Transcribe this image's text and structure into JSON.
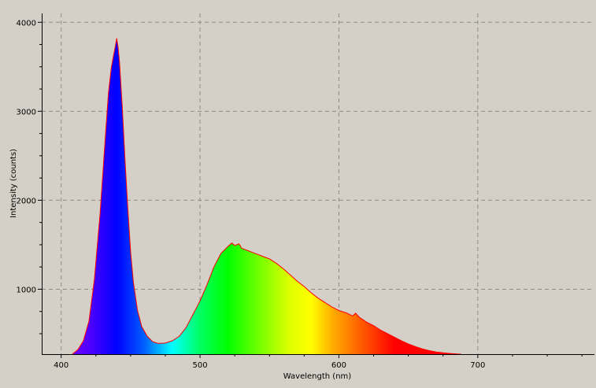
{
  "chart_data": {
    "type": "area",
    "xlabel": "Wavelength (nm)",
    "ylabel": "Intensity (counts)",
    "xlim": [
      386,
      784
    ],
    "ylim": [
      270,
      4100
    ],
    "x_ticks": [
      {
        "value": 400,
        "label": "400"
      },
      {
        "value": 500,
        "label": "500"
      },
      {
        "value": 600,
        "label": "600"
      },
      {
        "value": 700,
        "label": "700"
      }
    ],
    "y_ticks": [
      {
        "value": 1000,
        "label": "1000"
      },
      {
        "value": 2000,
        "label": "2000"
      },
      {
        "value": 3000,
        "label": "3000"
      },
      {
        "value": 4000,
        "label": "4000"
      }
    ],
    "grid": true,
    "fill": "spectral-rainbow",
    "line_color": "#ff0000",
    "background_color": "#d4d0c8",
    "series": [
      {
        "x": [
          408,
          412,
          416,
          420,
          424,
          428,
          432,
          434,
          436,
          438,
          439,
          440,
          441,
          442,
          444,
          446,
          448,
          450,
          452,
          455,
          458,
          462,
          466,
          470,
          475,
          480,
          485,
          490,
          495,
          500,
          505,
          510,
          515,
          520,
          523,
          525,
          528,
          530,
          535,
          540,
          545,
          550,
          555,
          560,
          565,
          570,
          575,
          580,
          585,
          590,
          595,
          600,
          605,
          610,
          612,
          615,
          620,
          625,
          630,
          635,
          640,
          645,
          650,
          655,
          660,
          665,
          670,
          675,
          680,
          685,
          688
        ],
        "y": [
          270,
          320,
          420,
          640,
          1120,
          1850,
          2750,
          3200,
          3480,
          3650,
          3730,
          3820,
          3720,
          3550,
          3050,
          2450,
          1900,
          1420,
          1080,
          760,
          580,
          470,
          410,
          390,
          395,
          420,
          470,
          570,
          720,
          870,
          1050,
          1250,
          1400,
          1480,
          1520,
          1490,
          1510,
          1460,
          1430,
          1400,
          1370,
          1340,
          1290,
          1230,
          1160,
          1090,
          1030,
          960,
          900,
          850,
          800,
          760,
          735,
          700,
          730,
          680,
          630,
          590,
          540,
          500,
          460,
          420,
          385,
          355,
          330,
          310,
          295,
          285,
          278,
          272,
          270
        ]
      }
    ]
  }
}
